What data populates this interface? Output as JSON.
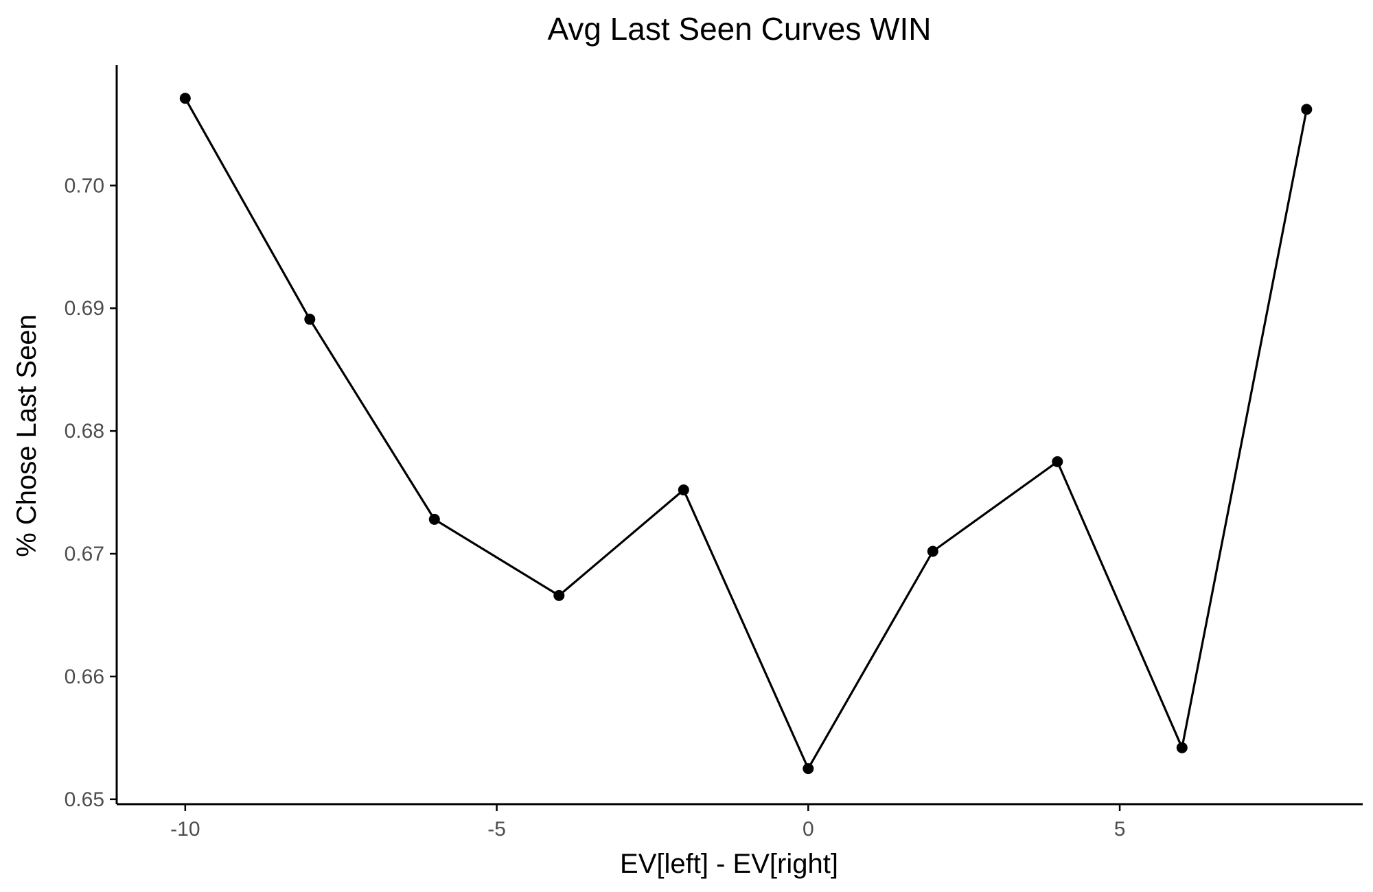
{
  "chart_data": {
    "type": "line",
    "title": "Avg Last Seen Curves WIN",
    "xlabel": "EV[left] - EV[right]",
    "ylabel": "% Chose Last Seen",
    "x": [
      -10,
      -8,
      -6,
      -4,
      -2,
      0,
      2,
      4,
      6,
      8
    ],
    "series": [
      {
        "values": [
          0.7071,
          0.6891,
          0.6728,
          0.6666,
          0.6752,
          0.6525,
          0.6702,
          0.6775,
          0.6542,
          0.7062
        ]
      }
    ],
    "xlim": [
      -11.1,
      8.9
    ],
    "ylim": [
      0.6496,
      0.7098
    ],
    "x_ticks": [
      -10,
      -5,
      0,
      5
    ],
    "x_tick_labels": [
      "-10",
      "-5",
      "0",
      "5"
    ],
    "y_ticks": [
      0.65,
      0.66,
      0.67,
      0.68,
      0.69,
      0.7
    ],
    "y_tick_labels": [
      "0.65",
      "0.66",
      "0.67",
      "0.68",
      "0.69",
      "0.70"
    ],
    "grid": false,
    "legend": "none",
    "colors": {
      "line": "#000000",
      "points": "#000000",
      "axis": "#000000",
      "tick_text": "#4d4d4d"
    }
  }
}
